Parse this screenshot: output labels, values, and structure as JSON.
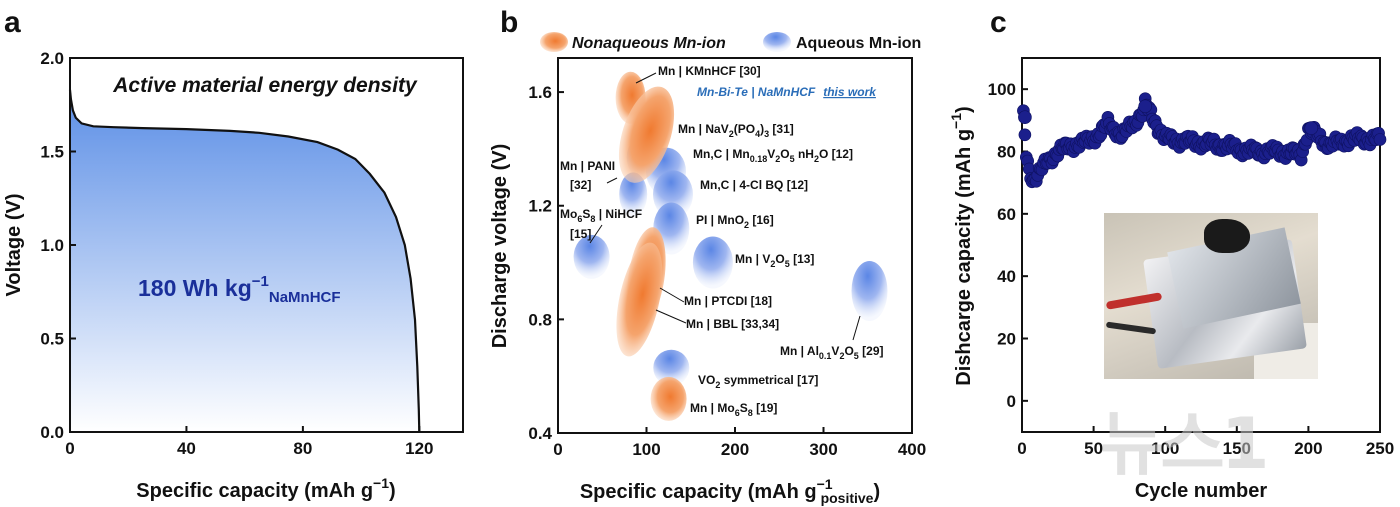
{
  "panel_a": {
    "letter": "a",
    "inset_title": "Active material energy density",
    "energy_label_main": "180 Wh kg",
    "energy_label_sup": "−1",
    "energy_label_sub": "NaMnHCF",
    "xlabel_main": "Specific capacity (mAh g",
    "xlabel_sup": "−1",
    "xlabel_close": ")",
    "ylabel": "Voltage (V)",
    "xticks": [
      "0",
      "40",
      "80",
      "120"
    ],
    "yticks": [
      "0.0",
      "0.5",
      "1.0",
      "1.5",
      "2.0"
    ]
  },
  "panel_b": {
    "letter": "b",
    "legend_nonaqueous": "Nonaqueous Mn-ion",
    "legend_aqueous": "Aqueous Mn-ion",
    "xlabel_main": "Specific capacity (mAh g",
    "xlabel_sup": "−1",
    "xlabel_sub": "positive",
    "xlabel_close": ")",
    "ylabel": "Discharge voltage (V)",
    "xticks": [
      "0",
      "100",
      "200",
      "300",
      "400"
    ],
    "yticks": [
      "0.4",
      "0.8",
      "1.2",
      "1.6"
    ],
    "highlight_label": "Mn-Bi-Te | NaMnHCF",
    "highlight_link": "this work",
    "labels": {
      "kmnhcf": "Mn | KMnHCF  [30]",
      "nav": "Mn | NaV",
      "nav_sub1": "2",
      "nav_mid": "(PO",
      "nav_sub2": "4",
      "nav_end": ")",
      "nav_sub3": "3",
      "nav_ref": "  [31]",
      "mnc1": "Mn,C | Mn",
      "mnc1_sub": "0.18",
      "mnc1_mid": "V",
      "mnc1_sub2": "2",
      "mnc1_end": "O",
      "mnc1_sub3": "5",
      "mnc1_tail": " nH",
      "mnc1_sub4": "2",
      "mnc1_tail2": "O   [12]",
      "pani": "Mn | PANI",
      "pani_ref": "[32]",
      "mnc2": "Mn,C | 4-Cl BQ   [12]",
      "mo6s8_nihcf": "Mo",
      "mo6s8_sub1": "6",
      "mo6s8_mid": "S",
      "mo6s8_sub2": "8",
      "mo6s8_end": " | NiHCF",
      "mo6s8_ref": "[15]",
      "pi": "PI | MnO",
      "pi_sub": "2",
      "pi_ref": "   [16]",
      "v2o5": "Mn | V",
      "v2o5_sub": "2",
      "v2o5_mid": "O",
      "v2o5_sub2": "5",
      "v2o5_ref": "   [13]",
      "ptcdi": "Mn | PTCDI   [18]",
      "bbl": "Mn | BBL   [33,34]",
      "al": "Mn | Al",
      "al_sub": "0.1",
      "al_mid": "V",
      "al_sub2": "2",
      "al_end": "O",
      "al_sub3": "5",
      "al_ref": "   [29]",
      "vo2": "VO",
      "vo2_sub": "2",
      "vo2_end": " symmetrical   [17]",
      "mo6s8": "Mn | Mo",
      "mo6s8b_sub1": "6",
      "mo6s8b_mid": "S",
      "mo6s8b_sub2": "8",
      "mo6s8b_ref": "   [19]"
    }
  },
  "panel_c": {
    "letter": "c",
    "xlabel": "Cycle number",
    "ylabel_main": "Dishcarge capacity (mAh g",
    "ylabel_sup": "−1",
    "ylabel_close": ")",
    "xticks": [
      "0",
      "50",
      "100",
      "150",
      "200",
      "250"
    ],
    "yticks": [
      "0",
      "20",
      "40",
      "60",
      "80",
      "100"
    ],
    "watermark": "뉴스1"
  },
  "colors": {
    "nonaqueous": "#f07a30",
    "aqueous": "#5b86e5",
    "fill_blue": "#5b8ee6",
    "marker": "#1b1f8c",
    "highlight": "#2a6db8",
    "energy_text": "#1a2f9a"
  },
  "chart_data": [
    {
      "type": "area",
      "panel": "a",
      "xlabel": "Specific capacity (mAh g−1)",
      "ylabel": "Voltage (V)",
      "xlim": [
        0,
        135
      ],
      "ylim": [
        0,
        2.0
      ],
      "x": [
        0,
        0.3,
        1,
        2,
        4,
        8,
        15,
        25,
        40,
        55,
        65,
        75,
        85,
        92,
        98,
        103,
        108,
        112,
        115,
        117,
        118.5,
        119.3,
        119.8,
        120
      ],
      "y": [
        1.83,
        1.78,
        1.72,
        1.68,
        1.65,
        1.635,
        1.63,
        1.625,
        1.62,
        1.61,
        1.6,
        1.58,
        1.55,
        1.51,
        1.46,
        1.38,
        1.28,
        1.15,
        1.0,
        0.82,
        0.6,
        0.35,
        0.12,
        0.0
      ],
      "annotation": "180 Wh kg−1 NaMnHCF"
    },
    {
      "type": "scatter",
      "panel": "b",
      "xlabel": "Specific capacity (mAh g−1 positive)",
      "ylabel": "Discharge voltage (V)",
      "xlim": [
        0,
        400
      ],
      "ylim": [
        0.4,
        1.72
      ],
      "series": [
        {
          "name": "Nonaqueous Mn-ion",
          "points": [
            {
              "label": "Mn | KMnHCF [30]",
              "x": 82,
              "y": 1.58
            },
            {
              "label": "Mn-Bi-Te | NaMnHCF (this work)",
              "x": 100,
              "y": 1.45
            },
            {
              "label": "Mn | PTCDI [18]",
              "x": 100,
              "y": 0.95
            },
            {
              "label": "Mn | BBL [33,34]",
              "x": 92,
              "y": 0.87
            },
            {
              "label": "Mn | Mo6S8 [19]",
              "x": 125,
              "y": 0.52
            }
          ]
        },
        {
          "name": "Aqueous Mn-ion",
          "points": [
            {
              "label": "Mn | NaV2(PO4)3 [31]",
              "x": 98,
              "y": 1.37
            },
            {
              "label": "Mn,C | Mn0.18V2O5 nH2O [12]",
              "x": 122,
              "y": 1.32
            },
            {
              "label": "Mn | PANI [32]",
              "x": 85,
              "y": 1.24
            },
            {
              "label": "Mn,C | 4-Cl BQ [12]",
              "x": 130,
              "y": 1.24
            },
            {
              "label": "Mo6S8 | NiHCF [15]",
              "x": 38,
              "y": 1.02
            },
            {
              "label": "PI | MnO2 [16]",
              "x": 128,
              "y": 1.12
            },
            {
              "label": "Mn | V2O5 [13]",
              "x": 175,
              "y": 1.0
            },
            {
              "label": "Mn | Al0.1V2O5 [29]",
              "x": 352,
              "y": 0.9
            },
            {
              "label": "VO2 symmetrical [17]",
              "x": 128,
              "y": 0.63
            }
          ]
        }
      ]
    },
    {
      "type": "scatter",
      "panel": "c",
      "xlabel": "Cycle number",
      "ylabel": "Dishcarge capacity (mAh g−1)",
      "xlim": [
        0,
        250
      ],
      "ylim": [
        -10,
        110
      ],
      "description_points": [
        {
          "x": 1,
          "y": 91
        },
        {
          "x": 3,
          "y": 79
        },
        {
          "x": 5,
          "y": 74
        },
        {
          "x": 8,
          "y": 71
        },
        {
          "x": 12,
          "y": 73
        },
        {
          "x": 18,
          "y": 77
        },
        {
          "x": 25,
          "y": 80
        },
        {
          "x": 35,
          "y": 82
        },
        {
          "x": 45,
          "y": 83
        },
        {
          "x": 55,
          "y": 86
        },
        {
          "x": 60,
          "y": 89
        },
        {
          "x": 70,
          "y": 85
        },
        {
          "x": 85,
          "y": 93
        },
        {
          "x": 86,
          "y": 95
        },
        {
          "x": 100,
          "y": 84
        },
        {
          "x": 120,
          "y": 83
        },
        {
          "x": 140,
          "y": 82
        },
        {
          "x": 160,
          "y": 80
        },
        {
          "x": 180,
          "y": 80
        },
        {
          "x": 195,
          "y": 79
        },
        {
          "x": 200,
          "y": 87
        },
        {
          "x": 215,
          "y": 82
        },
        {
          "x": 230,
          "y": 84
        },
        {
          "x": 250,
          "y": 84
        }
      ]
    }
  ]
}
